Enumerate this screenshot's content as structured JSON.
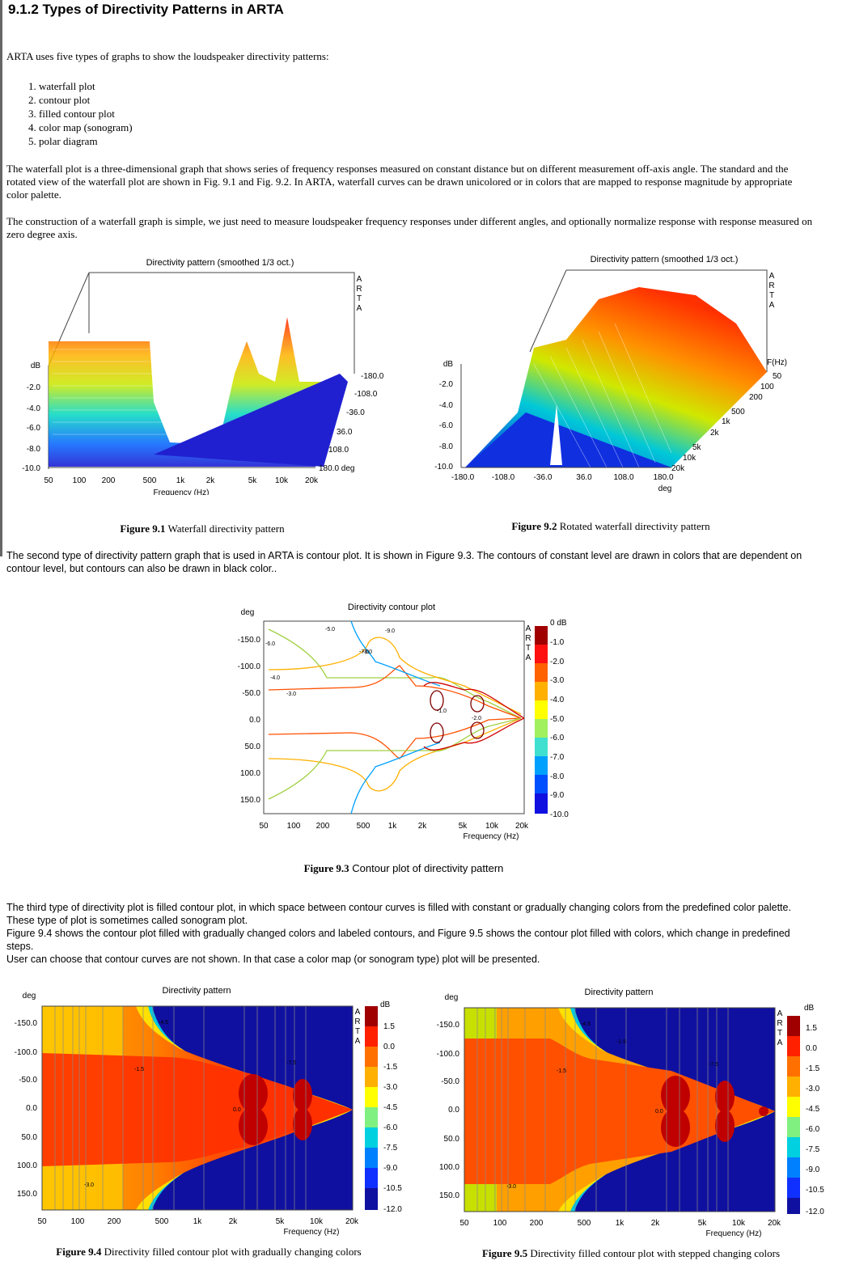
{
  "title": "9.1.2 Types of Directivity Patterns in ARTA",
  "intro": "ARTA uses five types of graphs to show the loudspeaker directivity patterns:",
  "list": [
    "waterfall plot",
    "contour plot",
    "filled contour plot",
    "color map (sonogram)",
    "polar diagram"
  ],
  "para_waterfall": "The waterfall plot is a three-dimensional graph that shows series of frequency responses measured on constant distance but on different measurement off-axis angle. The standard and the rotated view of the waterfall plot are shown in Fig. 9.1 and Fig. 9.2. In ARTA, waterfall curves can be drawn unicolored or in colors that are mapped to response magnitude by appropriate color palette.",
  "para_construction": "The construction of a waterfall graph is simple, we just need to measure loudspeaker frequency responses under different angles, and optionally normalize response with response measured on zero degree axis.",
  "para_contour": "The second type of directivity pattern graph that is used in ARTA is contour plot. It is shown in Figure 9.3. The contours of constant level are drawn in colors that are dependent on contour level, but contours can also be drawn in black color..",
  "para_filled_1": "The third type of directivity plot is filled contour plot, in which space between contour curves is filled with constant or gradually changing colors from the predefined color palette. These type of plot is sometimes called sonogram plot.",
  "para_filled_2": "Figure 9.4 shows the contour plot filled with gradually changed colors and labeled contours, and Figure 9.5 shows the contour plot filled with colors, which change in predefined steps.",
  "para_filled_3": "User can choose that contour curves are not shown. In that case a color map (or sonogram type) plot will be presented.",
  "brand": [
    "A",
    "R",
    "T",
    "A"
  ],
  "fig1": {
    "title": "Directivity pattern (smoothed 1/3 oct.)",
    "ylabel": "dB",
    "yticks": [
      "-2.0",
      "-4.0",
      "-6.0",
      "-8.0",
      "-10.0"
    ],
    "xticks": [
      "50",
      "100",
      "200",
      "500",
      "1k",
      "2k",
      "5k",
      "10k",
      "20k"
    ],
    "xlabel": "Frequency (Hz)",
    "zticks": [
      "-180.0",
      "-108.0",
      "-36.0",
      "36.0",
      "108.0",
      "180.0 deg"
    ],
    "caption_num": "Figure 9.1",
    "caption_text": " Waterfall directivity pattern"
  },
  "fig2": {
    "title": "Directivity pattern (smoothed 1/3 oct.)",
    "ylabel": "dB",
    "yticks": [
      "-2.0",
      "-4.0",
      "-6.0",
      "-8.0",
      "-10.0"
    ],
    "xticks": [
      "-180.0",
      "-108.0",
      "-36.0",
      "36.0",
      "108.0",
      "180.0"
    ],
    "xlabel": "deg",
    "zlabel": "F(Hz)",
    "zticks": [
      "50",
      "100",
      "200",
      "500",
      "1k",
      "2k",
      "5k",
      "10k",
      "20k"
    ],
    "caption_num": "Figure 9.2",
    "caption_text": " Rotated waterfall directivity pattern"
  },
  "fig3": {
    "title": "Directivity contour plot",
    "ylabel": "deg",
    "yticks": [
      "-150.0",
      "-100.0",
      "-50.0",
      "0.0",
      "50.0",
      "100.0",
      "150.0"
    ],
    "xticks": [
      "50",
      "100",
      "200",
      "500",
      "1k",
      "2k",
      "5k",
      "10k",
      "20k"
    ],
    "xlabel": "Frequency (Hz)",
    "cbar": [
      "0 dB",
      "-1.0",
      "-2.0",
      "-3.0",
      "-4.0",
      "-5.0",
      "-6.0",
      "-7.0",
      "-8.0",
      "-9.0",
      "-10.0"
    ],
    "labels": [
      "-6.0",
      "-5.0",
      "-9.0",
      "-7.0",
      "-8.0",
      "-4.0",
      "-3.0",
      "-1.0",
      "-2.0"
    ],
    "caption_num": "Figure 9.3",
    "caption_text": " Contour plot of directivity pattern"
  },
  "fig4": {
    "title": "Directivity pattern",
    "ylabel": "deg",
    "yticks": [
      "-150.0",
      "-100.0",
      "-50.0",
      "0.0",
      "50.0",
      "100.0",
      "150.0"
    ],
    "xticks": [
      "50",
      "100",
      "200",
      "500",
      "1k",
      "2k",
      "5k",
      "10k",
      "20k"
    ],
    "xlabel": "Frequency (Hz)",
    "cbar_unit": "dB",
    "cbar": [
      "1.5",
      "0.0",
      "-1.5",
      "-3.0",
      "-4.5",
      "-6.0",
      "-7.5",
      "-9.0",
      "-10.5",
      "-12.0"
    ],
    "labels": [
      "-4.5",
      "-1.5",
      "-7.5",
      "0.0",
      "-3.0"
    ],
    "caption_num": "Figure 9.4",
    "caption_text": " Directivity filled contour plot with gradually changing colors"
  },
  "fig5": {
    "title": "Directivity pattern",
    "ylabel": "deg",
    "yticks": [
      "-150.0",
      "-100.0",
      "-50.0",
      "0.0",
      "50.0",
      "100.0",
      "150.0"
    ],
    "xticks": [
      "50",
      "100",
      "200",
      "500",
      "1k",
      "2k",
      "5k",
      "10k",
      "20k"
    ],
    "xlabel": "Frequency (Hz)",
    "cbar_unit": "dB",
    "cbar": [
      "1.5",
      "0.0",
      "-1.5",
      "-3.0",
      "-4.5",
      "-6.0",
      "-7.5",
      "-9.0",
      "-10.5",
      "-12.0"
    ],
    "labels": [
      "-4.5",
      "-1.5",
      "-1.5",
      "-7.5",
      "0.0",
      "-3.0"
    ],
    "caption_num": "Figure 9.5",
    "caption_text": " Directivity filled contour plot with stepped changing colors"
  }
}
